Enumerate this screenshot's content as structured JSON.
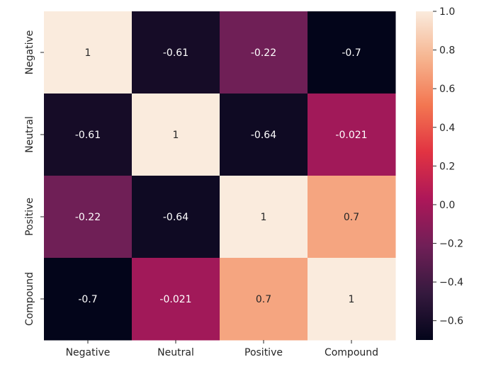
{
  "chart_data": {
    "type": "heatmap",
    "title": "",
    "xlabel": "",
    "ylabel": "",
    "x_categories": [
      "Negative",
      "Neutral",
      "Positive",
      "Compound"
    ],
    "y_categories": [
      "Negative",
      "Neutral",
      "Positive",
      "Compound"
    ],
    "values": [
      [
        1,
        -0.61,
        -0.22,
        -0.7
      ],
      [
        -0.61,
        1,
        -0.64,
        -0.021
      ],
      [
        -0.22,
        -0.64,
        1,
        0.7
      ],
      [
        -0.7,
        -0.021,
        0.7,
        1
      ]
    ],
    "annotations": [
      [
        "1",
        "-0.61",
        "-0.22",
        "-0.7"
      ],
      [
        "-0.61",
        "1",
        "-0.64",
        "-0.021"
      ],
      [
        "-0.22",
        "-0.64",
        "1",
        "0.7"
      ],
      [
        "-0.7",
        "-0.021",
        "0.7",
        "1"
      ]
    ],
    "colorbar": {
      "vmin": -0.7,
      "vmax": 1.0,
      "ticks": [
        1.0,
        0.8,
        0.6,
        0.4,
        0.2,
        0.0,
        -0.2,
        -0.4,
        -0.6
      ],
      "tick_labels": [
        "1.0",
        "0.8",
        "0.6",
        "0.4",
        "0.2",
        "0.0",
        "−0.2",
        "−0.4",
        "−0.6"
      ],
      "colormap": "rocket",
      "colormap_stops": [
        "#03051a",
        "#35193e",
        "#701f57",
        "#ad1759",
        "#e13342",
        "#f37651",
        "#f6b48f",
        "#faebdd"
      ]
    },
    "grid": false,
    "legend": "none"
  }
}
